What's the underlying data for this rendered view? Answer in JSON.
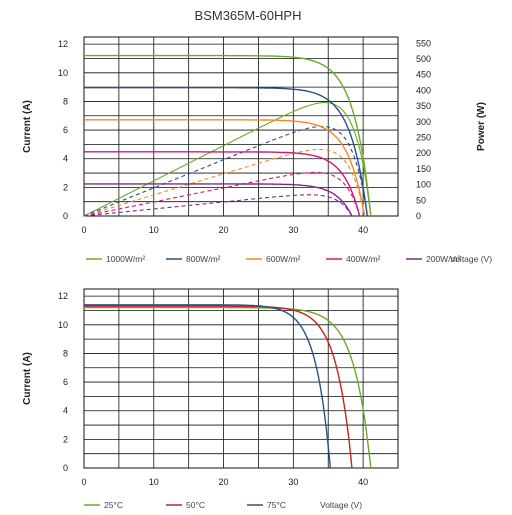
{
  "title": "BSM365M-60HPH",
  "chart_data": [
    {
      "type": "line",
      "title": "BSM365M-60HPH",
      "xlabel": "Voltage (V)",
      "ylabel": "Current (A)",
      "y2label": "Power (W)",
      "xlim": [
        0,
        45
      ],
      "ylim": [
        0,
        12.5
      ],
      "y2lim": [
        0,
        570
      ],
      "x_ticks": [
        0,
        10,
        20,
        30,
        40
      ],
      "y_ticks": [
        0,
        2,
        4,
        6,
        8,
        10,
        12
      ],
      "y2_ticks": [
        0,
        50,
        100,
        150,
        200,
        250,
        300,
        350,
        400,
        450,
        500,
        550
      ],
      "grid": true,
      "legend_position": "bottom",
      "series": [
        {
          "name": "1000W/m²",
          "color": "#6aaa2a",
          "isc": 11.2,
          "voc": 41.1,
          "vmp": 35.3,
          "imp": 10.6,
          "pmax": 374
        },
        {
          "name": "800W/m²",
          "color": "#2c4f8a",
          "isc": 8.96,
          "voc": 40.6,
          "vmp": 35.0,
          "imp": 8.4,
          "pmax": 294
        },
        {
          "name": "600W/m²",
          "color": "#f08a24",
          "isc": 6.72,
          "voc": 40.2,
          "vmp": 34.6,
          "imp": 6.3,
          "pmax": 218
        },
        {
          "name": "400W/m²",
          "color": "#d8147a",
          "isc": 4.48,
          "voc": 39.5,
          "vmp": 34.2,
          "imp": 4.2,
          "pmax": 144
        },
        {
          "name": "200W/m²",
          "color": "#7b2a8c",
          "isc": 2.24,
          "voc": 38.4,
          "vmp": 33.4,
          "imp": 2.1,
          "pmax": 70
        }
      ]
    },
    {
      "type": "line",
      "xlabel": "Voltage (V)",
      "ylabel": "Current (A)",
      "xlim": [
        0,
        45
      ],
      "ylim": [
        0,
        12.5
      ],
      "x_ticks": [
        0,
        10,
        20,
        30,
        40
      ],
      "y_ticks": [
        0,
        2,
        4,
        6,
        8,
        10,
        12
      ],
      "grid": true,
      "legend_position": "bottom",
      "series": [
        {
          "name": "25°C",
          "color": "#6aaa2a",
          "isc": 11.2,
          "voc": 41.1
        },
        {
          "name": "50°C",
          "color": "#c42424",
          "isc": 11.3,
          "voc": 38.4
        },
        {
          "name": "75°C",
          "color": "#2c4f8a",
          "isc": 11.4,
          "voc": 35.3
        }
      ]
    }
  ]
}
